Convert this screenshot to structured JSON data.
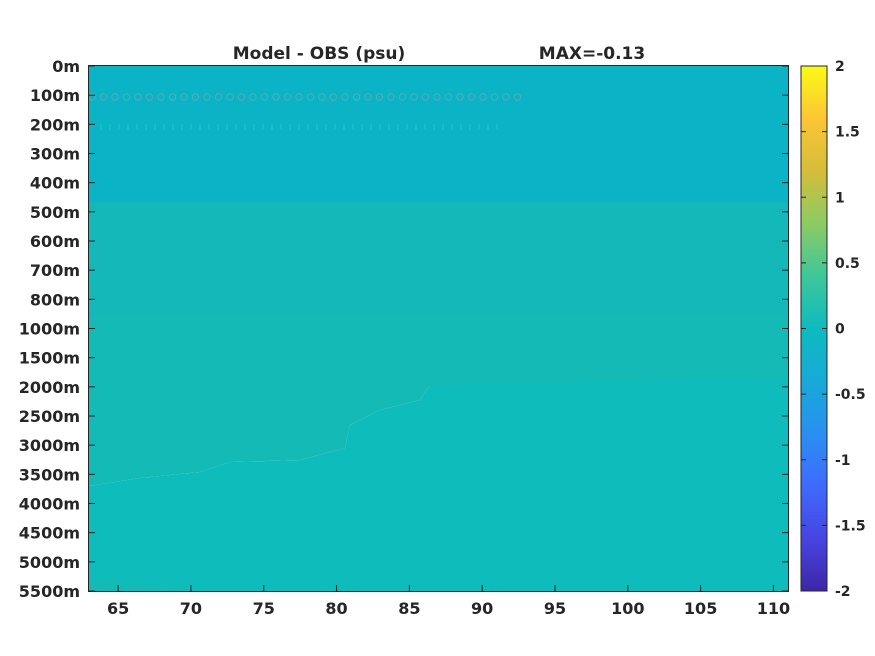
{
  "chart_data": {
    "type": "heatmap",
    "title_left": "Model - OBS (psu)",
    "title_right": "MAX=-0.13",
    "xlabel": "",
    "ylabel": "",
    "x_ticks": [
      65,
      70,
      75,
      80,
      85,
      90,
      95,
      100,
      105,
      110
    ],
    "xlim": [
      63,
      111
    ],
    "y_ticks": [
      "0m",
      "100m",
      "200m",
      "300m",
      "400m",
      "500m",
      "600m",
      "700m",
      "800m",
      "1000m",
      "1500m",
      "2000m",
      "2500m",
      "3000m",
      "3500m",
      "4000m",
      "4500m",
      "5000m",
      "5500m"
    ],
    "colorbar": {
      "ticks": [
        "2",
        "1.5",
        "1",
        "0.5",
        "0",
        "-0.5",
        "-1",
        "-1.5",
        "-2"
      ],
      "range": [
        -2,
        2
      ],
      "colormap": "parula"
    },
    "field_colors": {
      "upper_band": "#0ab3c5",
      "mid_band": "#14b8b9",
      "deep_light": "#14bab5",
      "deep_dark": "#0fbcbc"
    },
    "grid": false,
    "colorbar_position": "right"
  }
}
